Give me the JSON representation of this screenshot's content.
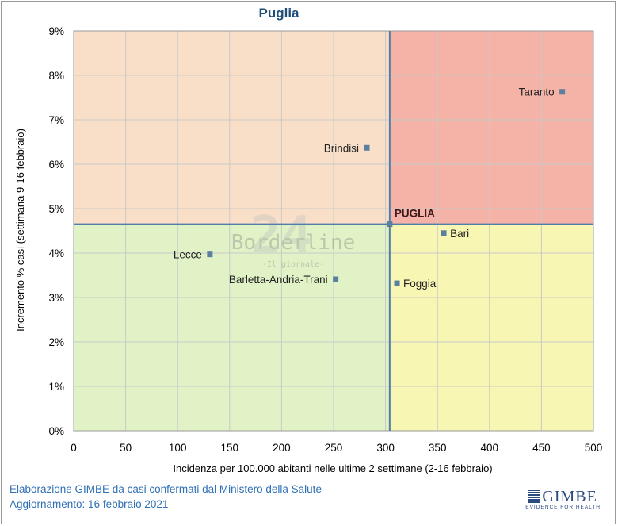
{
  "chart_data": {
    "type": "scatter",
    "title": "Puglia",
    "xlabel": "Incidenza per 100.000 abitanti nelle ultime 2 settimane (2-16 febbraio)",
    "ylabel": "Incremento % casi (settimana 9-16 febbraio)",
    "xlim": [
      0,
      500
    ],
    "ylim": [
      0,
      9
    ],
    "x_ticks": [
      "0",
      "50",
      "100",
      "150",
      "200",
      "250",
      "300",
      "350",
      "400",
      "450",
      "500"
    ],
    "y_ticks": [
      "0%",
      "1%",
      "2%",
      "3%",
      "4%",
      "5%",
      "6%",
      "7%",
      "8%",
      "9%"
    ],
    "grid": true,
    "reference_lines": {
      "x": 304,
      "y": 4.65
    },
    "quadrant_colors": {
      "top_left": "#f9dfc8",
      "top_right": "#f5b2a6",
      "bottom_left": "#e0f2c6",
      "bottom_right": "#f7f6b3"
    },
    "points": [
      {
        "label": "Taranto",
        "x": 470,
        "y": 7.63,
        "label_pos": "left"
      },
      {
        "label": "Brindisi",
        "x": 282,
        "y": 6.37,
        "label_pos": "left"
      },
      {
        "label": "PUGLIA",
        "x": 304,
        "y": 4.65,
        "label_pos": "above-right",
        "bold": true
      },
      {
        "label": "Bari",
        "x": 356,
        "y": 4.45,
        "label_pos": "right"
      },
      {
        "label": "Lecce",
        "x": 131,
        "y": 3.97,
        "label_pos": "left"
      },
      {
        "label": "Barletta-Andria-Trani",
        "x": 252,
        "y": 3.41,
        "label_pos": "left"
      },
      {
        "label": "Foggia",
        "x": 311,
        "y": 3.32,
        "label_pos": "right"
      }
    ],
    "marker_color": "#5a7fa0"
  },
  "watermark": {
    "text": "Borderline",
    "subtext": "-Il giornale-",
    "number": "24"
  },
  "footer": {
    "line1": "Elaborazione GIMBE da casi confermati dal Ministero della Salute",
    "line2": "Aggiornamento: 16 febbraio 2021"
  },
  "logo": {
    "main": "GIMBE",
    "sub": "EVIDENCE FOR HEALTH"
  }
}
